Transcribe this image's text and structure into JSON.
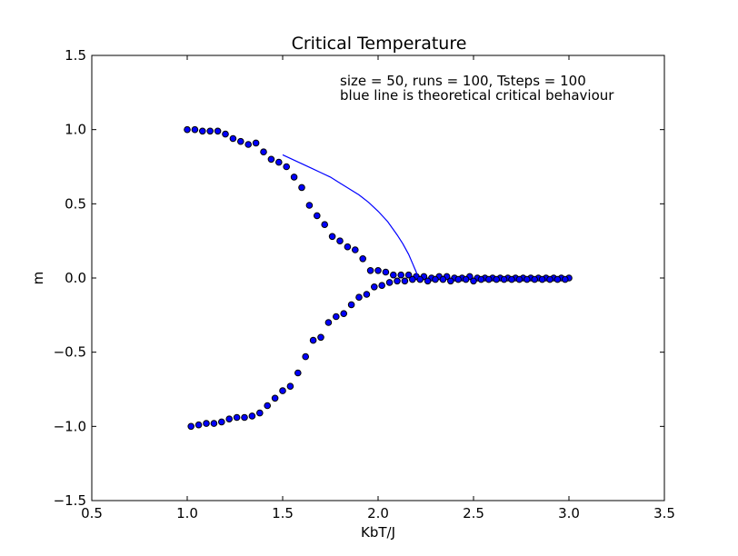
{
  "chart_data": {
    "type": "scatter",
    "title": "Critical Temperature",
    "xlabel": "KbT/J",
    "ylabel": "m",
    "xlim": [
      0.5,
      3.5
    ],
    "ylim": [
      -1.5,
      1.5
    ],
    "xticks": [
      "0.5",
      "1.0",
      "1.5",
      "2.0",
      "2.5",
      "3.0",
      "3.5"
    ],
    "yticks": [
      "−1.5",
      "−1.0",
      "−0.5",
      "0.0",
      "0.5",
      "1.0",
      "1.5"
    ],
    "grid": false,
    "annotations": [
      "size = 50, runs = 100, Tsteps = 100",
      "blue line is theoretical critical behaviour"
    ],
    "colors": {
      "marker_fill": "#0000ff",
      "marker_edge": "#000000",
      "line": "#0000ff"
    },
    "series": [
      {
        "type": "scatter",
        "x": [
          1.0,
          1.04,
          1.08,
          1.12,
          1.16,
          1.2,
          1.24,
          1.28,
          1.32,
          1.36,
          1.4,
          1.44,
          1.48,
          1.52,
          1.56,
          1.6,
          1.64,
          1.68,
          1.72,
          1.76,
          1.8,
          1.84,
          1.88,
          1.92,
          1.96,
          2.0,
          2.04,
          2.08,
          2.12,
          2.16,
          2.2,
          2.24,
          2.28,
          2.32,
          2.36,
          2.4,
          2.44,
          2.48,
          2.52,
          2.56,
          2.6,
          2.64,
          2.68,
          2.72,
          2.76,
          2.8,
          2.84,
          2.88,
          2.92,
          2.96,
          3.0
        ],
        "y": [
          1.0,
          1.0,
          0.99,
          0.99,
          0.99,
          0.97,
          0.94,
          0.92,
          0.9,
          0.91,
          0.85,
          0.8,
          0.78,
          0.75,
          0.68,
          0.61,
          0.49,
          0.42,
          0.36,
          0.28,
          0.25,
          0.21,
          0.19,
          0.13,
          0.05,
          0.05,
          0.04,
          0.02,
          0.02,
          0.02,
          0.01,
          0.01,
          0.0,
          0.01,
          0.01,
          0.0,
          0.0,
          0.01,
          0.0,
          0.0,
          0.0,
          0.0,
          0.0,
          0.0,
          0.0,
          0.0,
          0.0,
          0.0,
          0.0,
          0.0,
          0.0
        ]
      },
      {
        "type": "scatter",
        "x": [
          1.02,
          1.06,
          1.1,
          1.14,
          1.18,
          1.22,
          1.26,
          1.3,
          1.34,
          1.38,
          1.42,
          1.46,
          1.5,
          1.54,
          1.58,
          1.62,
          1.66,
          1.7,
          1.74,
          1.78,
          1.82,
          1.86,
          1.9,
          1.94,
          1.98,
          2.02,
          2.06,
          2.1,
          2.14,
          2.18,
          2.22,
          2.26,
          2.3,
          2.34,
          2.38,
          2.42,
          2.46,
          2.5,
          2.54,
          2.58,
          2.62,
          2.66,
          2.7,
          2.74,
          2.78,
          2.82,
          2.86,
          2.9,
          2.94,
          2.98
        ],
        "y": [
          -1.0,
          -0.99,
          -0.98,
          -0.98,
          -0.97,
          -0.95,
          -0.94,
          -0.94,
          -0.93,
          -0.91,
          -0.86,
          -0.81,
          -0.76,
          -0.73,
          -0.64,
          -0.53,
          -0.42,
          -0.4,
          -0.3,
          -0.26,
          -0.24,
          -0.18,
          -0.13,
          -0.11,
          -0.06,
          -0.05,
          -0.03,
          -0.02,
          -0.02,
          -0.01,
          -0.01,
          -0.02,
          -0.01,
          -0.01,
          -0.02,
          -0.01,
          -0.01,
          -0.02,
          -0.01,
          -0.01,
          -0.01,
          -0.01,
          -0.01,
          -0.01,
          -0.01,
          -0.01,
          -0.01,
          -0.01,
          -0.01,
          -0.01
        ]
      },
      {
        "type": "line",
        "x": [
          1.5,
          1.55,
          1.6,
          1.65,
          1.7,
          1.75,
          1.8,
          1.85,
          1.9,
          1.95,
          2.0,
          2.05,
          2.1,
          2.13,
          2.16,
          2.18,
          2.19,
          2.2,
          2.21
        ],
        "y": [
          0.83,
          0.8,
          0.77,
          0.74,
          0.71,
          0.68,
          0.64,
          0.6,
          0.56,
          0.51,
          0.45,
          0.38,
          0.29,
          0.23,
          0.16,
          0.1,
          0.07,
          0.04,
          0.0
        ]
      }
    ]
  }
}
